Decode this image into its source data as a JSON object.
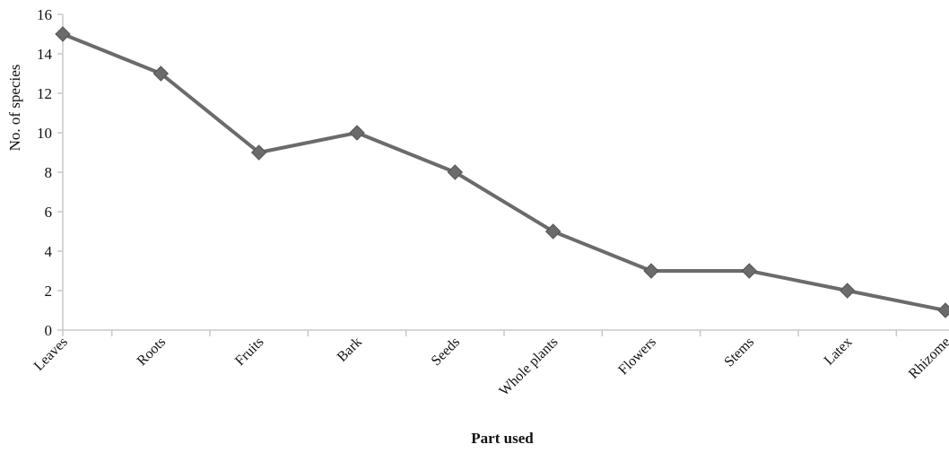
{
  "chart_data": {
    "type": "line",
    "title": "",
    "xlabel": "Part used",
    "ylabel": "No. of species",
    "categories": [
      "Leaves",
      "Roots",
      "Fruits",
      "Bark",
      "Seeds",
      "Whole plants",
      "Flowers",
      "Stems",
      "Latex",
      "Rhizome"
    ],
    "values": [
      15,
      13,
      9,
      10,
      8,
      5,
      3,
      3,
      2,
      1
    ],
    "ylim": [
      0,
      16
    ],
    "yticks": [
      0,
      2,
      4,
      6,
      8,
      10,
      12,
      14,
      16
    ],
    "grid": false,
    "legend": "none",
    "marker": "diamond",
    "line_color": "#6b6b6b"
  }
}
